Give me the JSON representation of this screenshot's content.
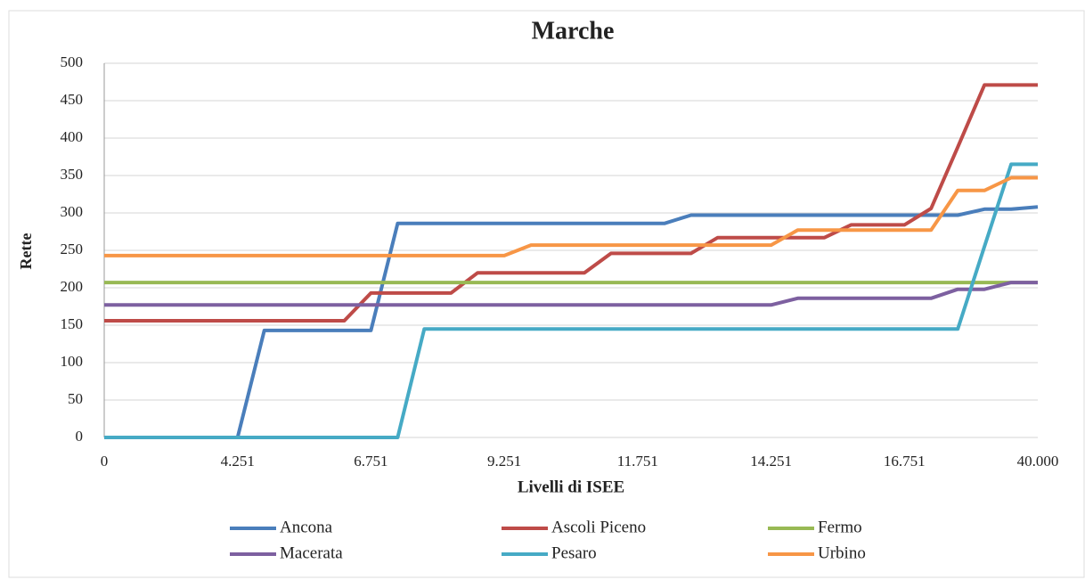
{
  "chart_data": {
    "type": "line",
    "title": "Marche",
    "xlabel": "Livelli di ISEE",
    "ylabel": "Rette",
    "categories": [
      "0",
      null,
      null,
      null,
      null,
      "4.251",
      null,
      null,
      null,
      null,
      "6.751",
      null,
      null,
      null,
      null,
      "9.251",
      null,
      null,
      null,
      null,
      "11.751",
      null,
      null,
      null,
      null,
      "14.251",
      null,
      null,
      null,
      null,
      "16.751",
      null,
      null,
      null,
      null,
      "40.000"
    ],
    "series": [
      {
        "name": "Ancona",
        "color": "#4a7ebb",
        "values": [
          0,
          0,
          0,
          0,
          0,
          0,
          143,
          143,
          143,
          143,
          143,
          286,
          286,
          286,
          286,
          286,
          286,
          286,
          286,
          286,
          286,
          286,
          297,
          297,
          297,
          297,
          297,
          297,
          297,
          297,
          297,
          297,
          297,
          305,
          305,
          308
        ]
      },
      {
        "name": "Ascoli Piceno",
        "color": "#be4b48",
        "values": [
          156,
          156,
          156,
          156,
          156,
          156,
          156,
          156,
          156,
          156,
          193,
          193,
          193,
          193,
          220,
          220,
          220,
          220,
          220,
          246,
          246,
          246,
          246,
          267,
          267,
          267,
          267,
          267,
          284,
          284,
          284,
          306,
          388,
          471,
          471,
          471
        ]
      },
      {
        "name": "Fermo",
        "color": "#98b954",
        "values": [
          207,
          207,
          207,
          207,
          207,
          207,
          207,
          207,
          207,
          207,
          207,
          207,
          207,
          207,
          207,
          207,
          207,
          207,
          207,
          207,
          207,
          207,
          207,
          207,
          207,
          207,
          207,
          207,
          207,
          207,
          207,
          207,
          207,
          207,
          207,
          207
        ]
      },
      {
        "name": "Macerata",
        "color": "#7d60a0",
        "values": [
          177,
          177,
          177,
          177,
          177,
          177,
          177,
          177,
          177,
          177,
          177,
          177,
          177,
          177,
          177,
          177,
          177,
          177,
          177,
          177,
          177,
          177,
          177,
          177,
          177,
          177,
          186,
          186,
          186,
          186,
          186,
          186,
          198,
          198,
          207,
          207
        ]
      },
      {
        "name": "Pesaro",
        "color": "#46aac5",
        "values": [
          0,
          0,
          0,
          0,
          0,
          0,
          0,
          0,
          0,
          0,
          0,
          0,
          145,
          145,
          145,
          145,
          145,
          145,
          145,
          145,
          145,
          145,
          145,
          145,
          145,
          145,
          145,
          145,
          145,
          145,
          145,
          145,
          145,
          255,
          365,
          365
        ]
      },
      {
        "name": "Urbino",
        "color": "#f79646",
        "values": [
          243,
          243,
          243,
          243,
          243,
          243,
          243,
          243,
          243,
          243,
          243,
          243,
          243,
          243,
          243,
          243,
          257,
          257,
          257,
          257,
          257,
          257,
          257,
          257,
          257,
          257,
          277,
          277,
          277,
          277,
          277,
          277,
          330,
          330,
          347,
          347
        ]
      }
    ],
    "ylim": [
      0,
      500
    ],
    "yticks": [
      0,
      50,
      100,
      150,
      200,
      250,
      300,
      350,
      400,
      450,
      500
    ],
    "grid": true,
    "legend": "bottom"
  }
}
